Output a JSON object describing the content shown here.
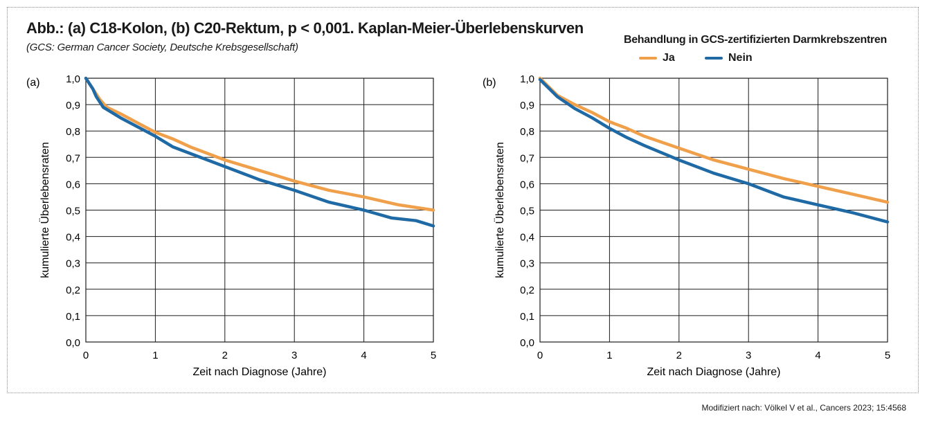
{
  "title": "Abb.: (a) C18-Kolon, (b) C20-Rektum, p < 0,001. Kaplan-Meier-Überlebenskurven",
  "subtitle": "(GCS: German Cancer Society, Deutsche Krebsgesellschaft)",
  "legend": {
    "title": "Behandlung in GCS-zertifizierten Darmkrebszentren",
    "items": [
      {
        "label": "Ja",
        "color": "#f0a04b"
      },
      {
        "label": "Nein",
        "color": "#1f6aa5"
      }
    ]
  },
  "source": "Modifiziert nach: Völkel V et al., Cancers 2023; 15:4568",
  "chart_data": [
    {
      "type": "line",
      "panel_label": "(a)",
      "xlabel": "Zeit nach Diagnose (Jahre)",
      "ylabel": "kumulierte Überlebensraten",
      "xlim": [
        0,
        5
      ],
      "ylim": [
        0,
        1
      ],
      "x_ticks": [
        "0",
        "1",
        "2",
        "3",
        "4",
        "5"
      ],
      "y_ticks": [
        "0,0",
        "0,1",
        "0,2",
        "0,3",
        "0,4",
        "0,5",
        "0,6",
        "0,7",
        "0,8",
        "0,9",
        "1,0"
      ],
      "grid": true,
      "series": [
        {
          "name": "Ja",
          "color": "#f0a04b",
          "x": [
            0,
            0.1,
            0.2,
            0.3,
            0.5,
            0.75,
            1.0,
            1.25,
            1.5,
            2.0,
            2.5,
            3.0,
            3.5,
            4.0,
            4.5,
            5.0
          ],
          "y": [
            1.0,
            0.96,
            0.92,
            0.89,
            0.865,
            0.83,
            0.795,
            0.77,
            0.74,
            0.69,
            0.65,
            0.61,
            0.575,
            0.55,
            0.52,
            0.5
          ]
        },
        {
          "name": "Nein",
          "color": "#1f6aa5",
          "x": [
            0,
            0.1,
            0.15,
            0.25,
            0.5,
            0.75,
            1.0,
            1.25,
            1.5,
            2.0,
            2.5,
            3.0,
            3.5,
            4.0,
            4.4,
            4.75,
            5.0
          ],
          "y": [
            1.0,
            0.96,
            0.93,
            0.89,
            0.85,
            0.815,
            0.78,
            0.74,
            0.715,
            0.665,
            0.615,
            0.575,
            0.53,
            0.5,
            0.47,
            0.46,
            0.44
          ]
        }
      ]
    },
    {
      "type": "line",
      "panel_label": "(b)",
      "xlabel": "Zeit nach Diagnose (Jahre)",
      "ylabel": "kumulierte Überlebensraten",
      "xlim": [
        0,
        5
      ],
      "ylim": [
        0,
        1
      ],
      "x_ticks": [
        "0",
        "1",
        "2",
        "3",
        "4",
        "5"
      ],
      "y_ticks": [
        "0,0",
        "0,1",
        "0,2",
        "0,3",
        "0,4",
        "0,5",
        "0,6",
        "0,7",
        "0,8",
        "0,9",
        "1,0"
      ],
      "grid": true,
      "series": [
        {
          "name": "Ja",
          "color": "#f0a04b",
          "x": [
            0,
            0.25,
            0.5,
            0.75,
            1.0,
            1.25,
            1.5,
            2.0,
            2.5,
            3.0,
            3.5,
            4.0,
            4.5,
            5.0
          ],
          "y": [
            1.0,
            0.935,
            0.9,
            0.87,
            0.835,
            0.81,
            0.78,
            0.735,
            0.69,
            0.655,
            0.62,
            0.59,
            0.56,
            0.53
          ]
        },
        {
          "name": "Nein",
          "color": "#1f6aa5",
          "x": [
            0,
            0.25,
            0.5,
            0.75,
            1.0,
            1.25,
            1.5,
            2.0,
            2.5,
            3.0,
            3.5,
            4.0,
            4.5,
            5.0
          ],
          "y": [
            0.995,
            0.93,
            0.885,
            0.85,
            0.81,
            0.775,
            0.745,
            0.69,
            0.64,
            0.6,
            0.55,
            0.52,
            0.49,
            0.455
          ]
        }
      ]
    }
  ]
}
